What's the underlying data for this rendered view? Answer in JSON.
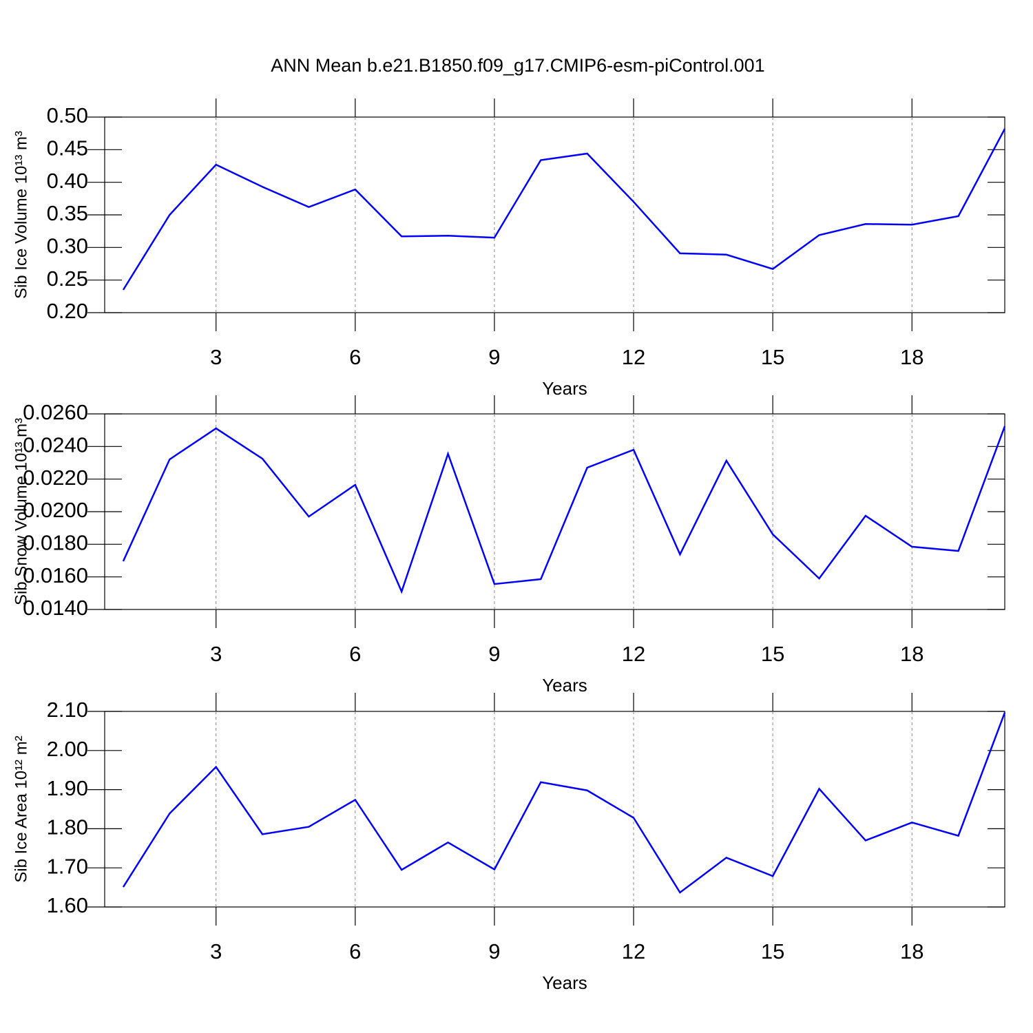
{
  "title": "ANN Mean b.e21.B1850.f09_g17.CMIP6-esm-piControl.001",
  "chart_data": [
    {
      "type": "line",
      "ylabel": "Sib Ice Volume 10¹³ m³",
      "xlabel": "Years",
      "x": [
        1,
        2,
        3,
        4,
        5,
        6,
        7,
        8,
        9,
        10,
        11,
        12,
        13,
        14,
        15,
        16,
        17,
        18,
        19,
        20
      ],
      "series": [
        {
          "color": "#0000ff",
          "values": [
            0.235,
            0.35,
            0.427,
            0.393,
            0.362,
            0.389,
            0.317,
            0.318,
            0.315,
            0.434,
            0.444,
            0.37,
            0.291,
            0.289,
            0.267,
            0.319,
            0.336,
            0.335,
            0.348,
            0.482
          ]
        }
      ],
      "xlim": [
        0.6,
        20
      ],
      "xticks": [
        3,
        6,
        9,
        12,
        15,
        18
      ],
      "ylim": [
        0.2,
        0.5
      ],
      "yticks": [
        {
          "value": 0.2,
          "label": "0.20"
        },
        0.25,
        {
          "value": 0.3,
          "label": "0.30"
        },
        0.35,
        {
          "value": 0.4,
          "label": "0.40"
        },
        0.45,
        {
          "value": 0.5,
          "label": "0.50"
        }
      ],
      "grid": "x"
    },
    {
      "type": "line",
      "ylabel": "Sib Snow Volume 10¹³ m³",
      "xlabel": "Years",
      "x": [
        1,
        2,
        3,
        4,
        5,
        6,
        7,
        8,
        9,
        10,
        11,
        12,
        13,
        14,
        15,
        16,
        17,
        18,
        19,
        20
      ],
      "series": [
        {
          "color": "#0000ff",
          "values": [
            0.01696,
            0.02321,
            0.02511,
            0.02325,
            0.0197,
            0.02165,
            0.0151,
            0.02355,
            0.01556,
            0.01586,
            0.0227,
            0.0238,
            0.01738,
            0.02313,
            0.01861,
            0.0159,
            0.01975,
            0.01785,
            0.01759,
            0.02524
          ]
        }
      ],
      "xlim": [
        0.6,
        20
      ],
      "xticks": [
        3,
        6,
        9,
        12,
        15,
        18
      ],
      "ylim": [
        0.014,
        0.026
      ],
      "yticks": [
        {
          "value": 0.014,
          "label": "0.0140"
        },
        {
          "value": 0.016,
          "label": "0.0160"
        },
        {
          "value": 0.018,
          "label": "0.0180"
        },
        {
          "value": 0.02,
          "label": "0.0200"
        },
        {
          "value": 0.022,
          "label": "0.0220"
        },
        {
          "value": 0.024,
          "label": "0.0240"
        },
        {
          "value": 0.026,
          "label": "0.0260"
        }
      ],
      "grid": "x"
    },
    {
      "type": "line",
      "ylabel": "Sib Ice Area 10¹² m²",
      "xlabel": "Years",
      "x": [
        1,
        2,
        3,
        4,
        5,
        6,
        7,
        8,
        9,
        10,
        11,
        12,
        13,
        14,
        15,
        16,
        17,
        18,
        19,
        20
      ],
      "series": [
        {
          "color": "#0000ff",
          "values": [
            1.651,
            1.839,
            1.958,
            1.786,
            1.805,
            1.874,
            1.695,
            1.765,
            1.696,
            1.919,
            1.898,
            1.828,
            1.637,
            1.726,
            1.679,
            1.902,
            1.77,
            1.816,
            1.782,
            2.097
          ]
        }
      ],
      "xlim": [
        0.6,
        20
      ],
      "xticks": [
        3,
        6,
        9,
        12,
        15,
        18
      ],
      "ylim": [
        1.6,
        2.1
      ],
      "yticks": [
        {
          "value": 1.6,
          "label": "1.60"
        },
        {
          "value": 1.7,
          "label": "1.70"
        },
        {
          "value": 1.8,
          "label": "1.80"
        },
        {
          "value": 1.9,
          "label": "1.90"
        },
        {
          "value": 2.0,
          "label": "2.00"
        },
        {
          "value": 2.1,
          "label": "2.10"
        }
      ],
      "grid": "x"
    }
  ]
}
